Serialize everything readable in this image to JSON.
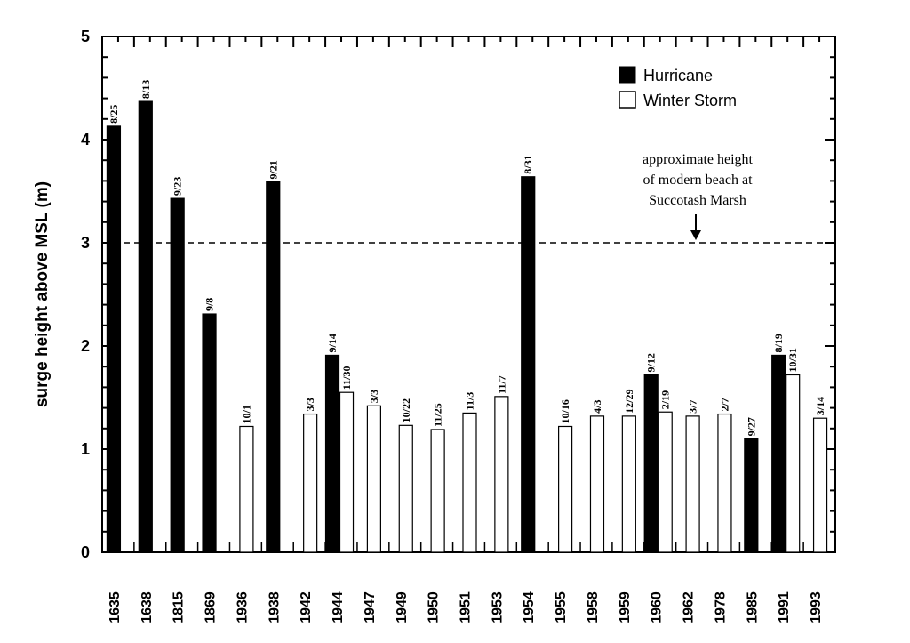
{
  "chart_data": {
    "type": "bar",
    "title": "",
    "xlabel": "",
    "ylabel": "surge height above MSL (m)",
    "ylim": [
      0,
      5
    ],
    "yticks": [
      0,
      1,
      2,
      3,
      4,
      5
    ],
    "grid": false,
    "legend_placement": "top-right",
    "legend": [
      {
        "name": "Hurricane",
        "color": "#000000"
      },
      {
        "name": "Winter Storm",
        "color": "#ffffff"
      }
    ],
    "categories": [
      "1635",
      "1638",
      "1815",
      "1869",
      "1936",
      "1938",
      "1942",
      "1944",
      "1947",
      "1949",
      "1950",
      "1951",
      "1953",
      "1954",
      "1955",
      "1958",
      "1959",
      "1960",
      "1962",
      "1978",
      "1985",
      "1991",
      "1993"
    ],
    "bars": [
      {
        "year": "1635",
        "type": "Hurricane",
        "date": "8/25",
        "value": 4.13
      },
      {
        "year": "1638",
        "type": "Hurricane",
        "date": "8/13",
        "value": 4.37
      },
      {
        "year": "1815",
        "type": "Hurricane",
        "date": "9/23",
        "value": 3.43
      },
      {
        "year": "1869",
        "type": "Hurricane",
        "date": "9/8",
        "value": 2.31
      },
      {
        "year": "1936",
        "type": "Winter Storm",
        "date": "10/1",
        "value": 1.22
      },
      {
        "year": "1938",
        "type": "Hurricane",
        "date": "9/21",
        "value": 3.59
      },
      {
        "year": "1942",
        "type": "Winter Storm",
        "date": "3/3",
        "value": 1.34
      },
      {
        "year": "1944",
        "type": "Hurricane",
        "date": "9/14",
        "value": 1.91
      },
      {
        "year": "1944",
        "type": "Winter Storm",
        "date": "11/30",
        "value": 1.55
      },
      {
        "year": "1947",
        "type": "Winter Storm",
        "date": "3/3",
        "value": 1.42
      },
      {
        "year": "1949",
        "type": "Winter Storm",
        "date": "10/22",
        "value": 1.23
      },
      {
        "year": "1950",
        "type": "Winter Storm",
        "date": "11/25",
        "value": 1.19
      },
      {
        "year": "1951",
        "type": "Winter Storm",
        "date": "11/3",
        "value": 1.35
      },
      {
        "year": "1953",
        "type": "Winter Storm",
        "date": "11/7",
        "value": 1.51
      },
      {
        "year": "1954",
        "type": "Hurricane",
        "date": "8/31",
        "value": 3.64
      },
      {
        "year": "1955",
        "type": "Winter Storm",
        "date": "10/16",
        "value": 1.22
      },
      {
        "year": "1958",
        "type": "Winter Storm",
        "date": "4/3",
        "value": 1.32
      },
      {
        "year": "1959",
        "type": "Winter Storm",
        "date": "12/29",
        "value": 1.32
      },
      {
        "year": "1960",
        "type": "Hurricane",
        "date": "9/12",
        "value": 1.72
      },
      {
        "year": "1960",
        "type": "Winter Storm",
        "date": "2/19",
        "value": 1.36
      },
      {
        "year": "1962",
        "type": "Winter Storm",
        "date": "3/7",
        "value": 1.32
      },
      {
        "year": "1978",
        "type": "Winter Storm",
        "date": "2/7",
        "value": 1.34
      },
      {
        "year": "1985",
        "type": "Hurricane",
        "date": "9/27",
        "value": 1.1
      },
      {
        "year": "1991",
        "type": "Hurricane",
        "date": "8/19",
        "value": 1.91
      },
      {
        "year": "1991",
        "type": "Winter Storm",
        "date": "10/31",
        "value": 1.72
      },
      {
        "year": "1993",
        "type": "Winter Storm",
        "date": "3/14",
        "value": 1.3
      }
    ],
    "reference_line": {
      "value": 3,
      "style": "dashed"
    },
    "annotation": [
      "approximate height",
      "of modern beach at",
      "Succotash Marsh"
    ]
  }
}
